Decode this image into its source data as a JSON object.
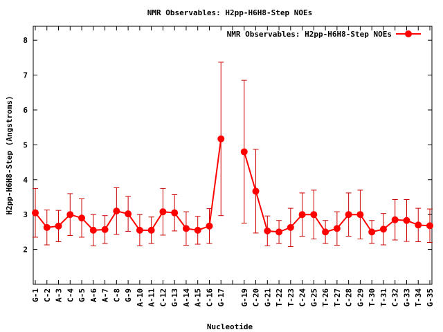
{
  "chart_data": {
    "type": "line",
    "title": "NMR Observables: H2pp-H6H8-Step NOEs",
    "xlabel": "Nucleotide",
    "ylabel": "H2pp-H6H8-Step (Angstroms)",
    "ylim": [
      1,
      8.4
    ],
    "yticks": [
      2,
      3,
      4,
      5,
      6,
      7,
      8
    ],
    "grid": false,
    "legend_position": "top-right",
    "colors": {
      "series": "#ff0000",
      "errorbar": "#cc0000",
      "axis": "#000000"
    },
    "categories": [
      "G-1",
      "C-2",
      "A-3",
      "C-4",
      "G-5",
      "A-6",
      "A-7",
      "C-8",
      "G-9",
      "A-10",
      "A-11",
      "C-12",
      "G-13",
      "A-14",
      "A-15",
      "C-16",
      "G-17",
      "",
      "G-19",
      "C-20",
      "G-21",
      "T-22",
      "T-23",
      "C-24",
      "G-25",
      "T-26",
      "T-27",
      "C-28",
      "G-29",
      "T-30",
      "T-31",
      "C-32",
      "G-33",
      "T-34",
      "G-35"
    ],
    "series": [
      {
        "name": "NMR Observables: H2pp-H6H8-Step NOEs",
        "values": [
          3.05,
          2.63,
          2.67,
          3.0,
          2.9,
          2.55,
          2.57,
          3.1,
          3.02,
          2.55,
          2.55,
          3.08,
          3.05,
          2.6,
          2.55,
          2.67,
          5.17,
          null,
          4.8,
          3.67,
          2.53,
          2.5,
          2.63,
          3.0,
          3.0,
          2.5,
          2.6,
          3.0,
          3.0,
          2.5,
          2.58,
          2.85,
          2.83,
          2.7,
          2.68
        ],
        "errors": [
          0.7,
          0.5,
          0.45,
          0.6,
          0.55,
          0.45,
          0.4,
          0.67,
          0.5,
          0.45,
          0.38,
          0.67,
          0.52,
          0.48,
          0.4,
          0.5,
          2.2,
          null,
          2.05,
          1.2,
          0.43,
          0.33,
          0.55,
          0.62,
          0.7,
          0.33,
          0.48,
          0.62,
          0.7,
          0.33,
          0.45,
          0.58,
          0.6,
          0.48,
          0.48
        ]
      }
    ]
  }
}
